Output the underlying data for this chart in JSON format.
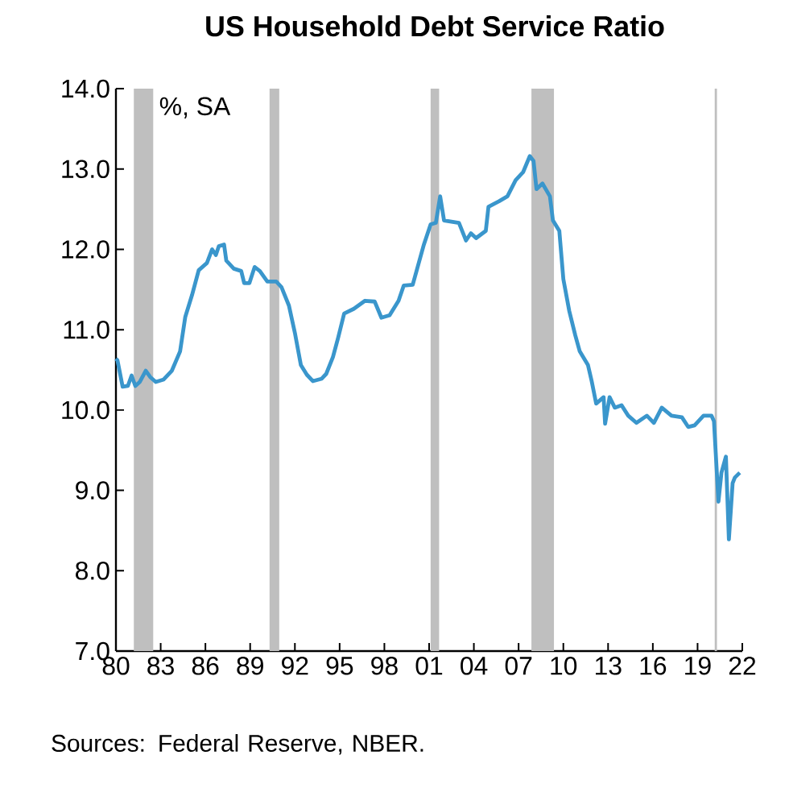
{
  "chart_data": {
    "type": "line",
    "title": "US Household Debt Service Ratio",
    "ylabel": "%, SA",
    "annotations": [
      "Sources: Federal Reserve, NBER."
    ],
    "series": [
      {
        "color": "#3a96cc",
        "line_style": "solid",
        "x": [
          1980.0,
          1980.1,
          1980.45,
          1980.8,
          1981.05,
          1981.3,
          1981.6,
          1982.0,
          1982.3,
          1982.67,
          1983.2,
          1983.75,
          1984.3,
          1984.65,
          1985.1,
          1985.55,
          1986.1,
          1986.45,
          1986.7,
          1986.9,
          1987.25,
          1987.4,
          1987.9,
          1988.4,
          1988.6,
          1988.95,
          1989.3,
          1989.65,
          1990.15,
          1990.75,
          1991.1,
          1991.6,
          1992.0,
          1992.4,
          1992.8,
          1993.2,
          1993.8,
          1994.1,
          1994.55,
          1994.9,
          1995.3,
          1995.95,
          1996.7,
          1997.35,
          1997.8,
          1998.35,
          1998.95,
          1999.3,
          1999.9,
          2000.2,
          2000.65,
          2001.1,
          2001.45,
          2001.74,
          2002.0,
          2003.0,
          2003.47,
          2003.8,
          2004.15,
          2004.8,
          2004.98,
          2005.7,
          2006.25,
          2006.8,
          2007.3,
          2007.75,
          2008.0,
          2008.2,
          2008.6,
          2009.1,
          2009.3,
          2009.73,
          2010.0,
          2010.4,
          2010.8,
          2011.1,
          2011.65,
          2011.9,
          2012.2,
          2012.7,
          2012.8,
          2013.1,
          2013.45,
          2013.9,
          2014.35,
          2014.9,
          2015.6,
          2016.07,
          2016.6,
          2017.25,
          2017.95,
          2018.37,
          2018.8,
          2019.4,
          2019.93,
          2020.1,
          2020.4,
          2020.6,
          2020.9,
          2021.1,
          2021.35,
          2021.5,
          2021.83
        ],
        "values": [
          10.64,
          10.62,
          10.29,
          10.3,
          10.43,
          10.3,
          10.35,
          10.49,
          10.41,
          10.35,
          10.38,
          10.49,
          10.73,
          11.16,
          11.43,
          11.74,
          11.83,
          12.0,
          11.93,
          12.04,
          12.06,
          11.86,
          11.76,
          11.73,
          11.58,
          11.58,
          11.78,
          11.73,
          11.6,
          11.6,
          11.53,
          11.3,
          10.96,
          10.56,
          10.44,
          10.36,
          10.39,
          10.45,
          10.66,
          10.9,
          11.2,
          11.26,
          11.36,
          11.35,
          11.15,
          11.18,
          11.36,
          11.55,
          11.56,
          11.76,
          12.06,
          12.31,
          12.33,
          12.66,
          12.36,
          12.33,
          12.11,
          12.2,
          12.14,
          12.23,
          12.53,
          12.6,
          12.66,
          12.86,
          12.96,
          13.16,
          13.1,
          12.75,
          12.82,
          12.66,
          12.36,
          12.23,
          11.63,
          11.23,
          10.93,
          10.73,
          10.56,
          10.36,
          10.08,
          10.16,
          9.83,
          10.16,
          10.03,
          10.06,
          9.93,
          9.84,
          9.93,
          9.84,
          10.03,
          9.93,
          9.91,
          9.79,
          9.81,
          9.93,
          9.93,
          9.86,
          8.86,
          9.22,
          9.42,
          8.39,
          9.09,
          9.16,
          9.22
        ]
      }
    ],
    "bands": [
      {
        "axis": "x",
        "from": 1981.2,
        "to": 1982.5,
        "color": "#bfbfbf"
      },
      {
        "axis": "x",
        "from": 1990.3,
        "to": 1990.95,
        "color": "#bfbfbf"
      },
      {
        "axis": "x",
        "from": 2001.1,
        "to": 2001.67,
        "color": "#bfbfbf"
      },
      {
        "axis": "x",
        "from": 2007.86,
        "to": 2009.37,
        "color": "#bfbfbf"
      },
      {
        "axis": "x",
        "from": 2020.15,
        "to": 2020.3,
        "color": "#bfbfbf"
      }
    ],
    "xlim": [
      1980,
      2022
    ],
    "xticks": [
      {
        "value": 1980,
        "label": "80"
      },
      {
        "value": 1983,
        "label": "83"
      },
      {
        "value": 1986,
        "label": "86"
      },
      {
        "value": 1989,
        "label": "89"
      },
      {
        "value": 1992,
        "label": "92"
      },
      {
        "value": 1995,
        "label": "95"
      },
      {
        "value": 1998,
        "label": "98"
      },
      {
        "value": 2001,
        "label": "01"
      },
      {
        "value": 2004,
        "label": "04"
      },
      {
        "value": 2007,
        "label": "07"
      },
      {
        "value": 2010,
        "label": "10"
      },
      {
        "value": 2013,
        "label": "13"
      },
      {
        "value": 2016,
        "label": "16"
      },
      {
        "value": 2019,
        "label": "19"
      },
      {
        "value": 2022,
        "label": "22"
      }
    ],
    "ylim": [
      7,
      14
    ],
    "yticks": [
      {
        "value": 7,
        "label": "7.0"
      },
      {
        "value": 8,
        "label": "8.0"
      },
      {
        "value": 9,
        "label": "9.0"
      },
      {
        "value": 10,
        "label": "10.0"
      },
      {
        "value": 11,
        "label": "11.0"
      },
      {
        "value": 12,
        "label": "12.0"
      },
      {
        "value": 13,
        "label": "13.0"
      },
      {
        "value": 14,
        "label": "14.0"
      }
    ]
  }
}
